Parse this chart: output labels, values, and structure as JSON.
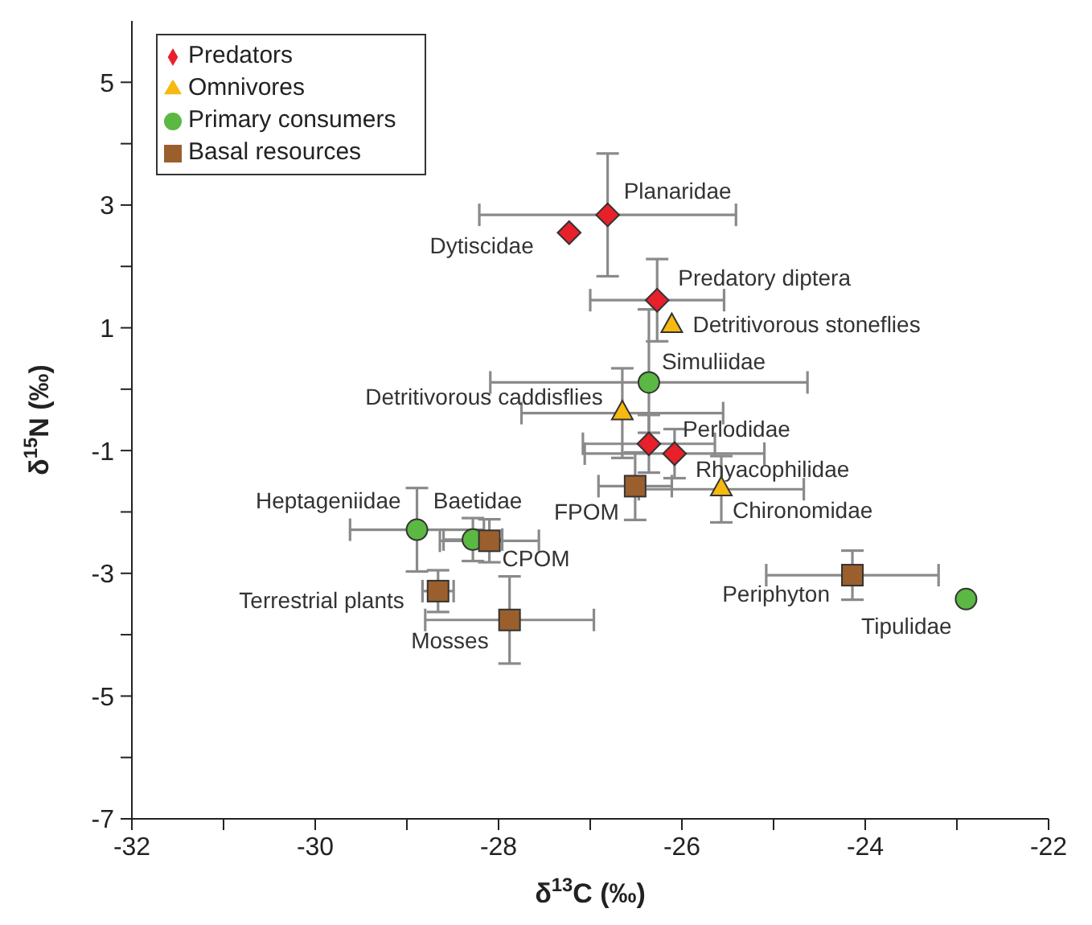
{
  "chart_data": {
    "type": "scatter",
    "xlabel": "δ$^{13}$C (‰)",
    "ylabel": "δ$^{15}$N (‰)",
    "xlim": [
      -32,
      -22
    ],
    "xticks": [
      -32,
      {
        "value": -31,
        "label": null
      },
      -30,
      {
        "value": -29,
        "label": null
      },
      -28,
      {
        "value": -27,
        "label": null
      },
      -26,
      {
        "value": -25,
        "label": null
      },
      -24,
      {
        "value": -23,
        "label": null
      },
      -22
    ],
    "ylim": [
      -7,
      6
    ],
    "yticks": [
      -7,
      {
        "value": -6,
        "label": null
      },
      -5,
      {
        "value": -4,
        "label": null
      },
      -3,
      {
        "value": -2,
        "label": null
      },
      -1,
      {
        "value": 0,
        "label": null
      },
      1,
      {
        "value": 2,
        "label": null
      },
      3,
      {
        "value": 4,
        "label": null
      },
      5
    ],
    "grid": false,
    "legend": "top left",
    "series": [
      {
        "name": "Predators",
        "color": "#e8202a",
        "marker": "diamond",
        "x": [
          -26.81,
          -27.23,
          -26.27,
          -26.36,
          -26.08
        ],
        "values": [
          2.84,
          2.55,
          1.45,
          -0.89,
          -1.05
        ],
        "errors": [
          1.0,
          null,
          0.67,
          0.47,
          0.4
        ],
        "xerrors": [
          1.4,
          null,
          0.73,
          0.72,
          0.98
        ]
      },
      {
        "name": "Omnivores",
        "color": "#f6b90f",
        "marker": "triangle",
        "x": [
          -26.11,
          -26.65,
          -25.57
        ],
        "values": [
          1.03,
          -0.39,
          -1.63
        ],
        "errors": [
          null,
          0.73,
          0.54
        ],
        "xerrors": [
          null,
          1.1,
          0.9
        ]
      },
      {
        "name": "Primary consumers",
        "color": "#5ab843",
        "marker": "circle",
        "x": [
          -26.36,
          -28.89,
          -28.28,
          -22.9
        ],
        "values": [
          0.11,
          -2.29,
          -2.45,
          -3.42
        ],
        "errors": [
          [
            -0.71,
            1.3
          ],
          0.68,
          0.35,
          null
        ],
        "xerrors": [
          1.73,
          0.73,
          0.32,
          null
        ]
      },
      {
        "name": "Basal resources",
        "color": "#9a5f2c",
        "marker": "square",
        "x": [
          -26.51,
          -28.1,
          -28.66,
          -27.88,
          -24.14
        ],
        "values": [
          -1.58,
          -2.47,
          -3.29,
          -3.76,
          -3.03
        ],
        "errors": [
          0.55,
          0.35,
          0.34,
          0.71,
          0.4
        ],
        "xerrors": [
          0.4,
          0.54,
          0.17,
          0.92,
          0.94
        ]
      }
    ],
    "annotations": [
      {
        "text": "Planaridae",
        "x": -26.81,
        "y": 2.84
      },
      {
        "text": "Dytiscidae",
        "x": -27.23,
        "y": 2.55
      },
      {
        "text": "Predatory diptera",
        "x": -26.27,
        "y": 1.45
      },
      {
        "text": "Detritivorous stoneflies",
        "x": -26.11,
        "y": 1.03
      },
      {
        "text": "Simuliidae",
        "x": -26.36,
        "y": 0.11
      },
      {
        "text": "Detritivorous caddisflies",
        "x": -26.65,
        "y": -0.39
      },
      {
        "text": "Perlodidae",
        "x": -26.36,
        "y": -0.89
      },
      {
        "text": "Rhyacophilidae",
        "x": -26.08,
        "y": -1.05
      },
      {
        "text": "Chironomidae",
        "x": -25.57,
        "y": -1.63
      },
      {
        "text": "FPOM",
        "x": -26.51,
        "y": -1.58
      },
      {
        "text": "Heptageniidae",
        "x": -28.89,
        "y": -2.29
      },
      {
        "text": "Baetidae",
        "x": -28.28,
        "y": -2.45
      },
      {
        "text": "CPOM",
        "x": -28.1,
        "y": -2.47
      },
      {
        "text": "Terrestrial plants",
        "x": -28.66,
        "y": -3.29
      },
      {
        "text": "Mosses",
        "x": -27.88,
        "y": -3.76
      },
      {
        "text": "Periphyton",
        "x": -24.14,
        "y": -3.03
      },
      {
        "text": "Tipulidae",
        "x": -22.9,
        "y": -3.42
      }
    ]
  }
}
